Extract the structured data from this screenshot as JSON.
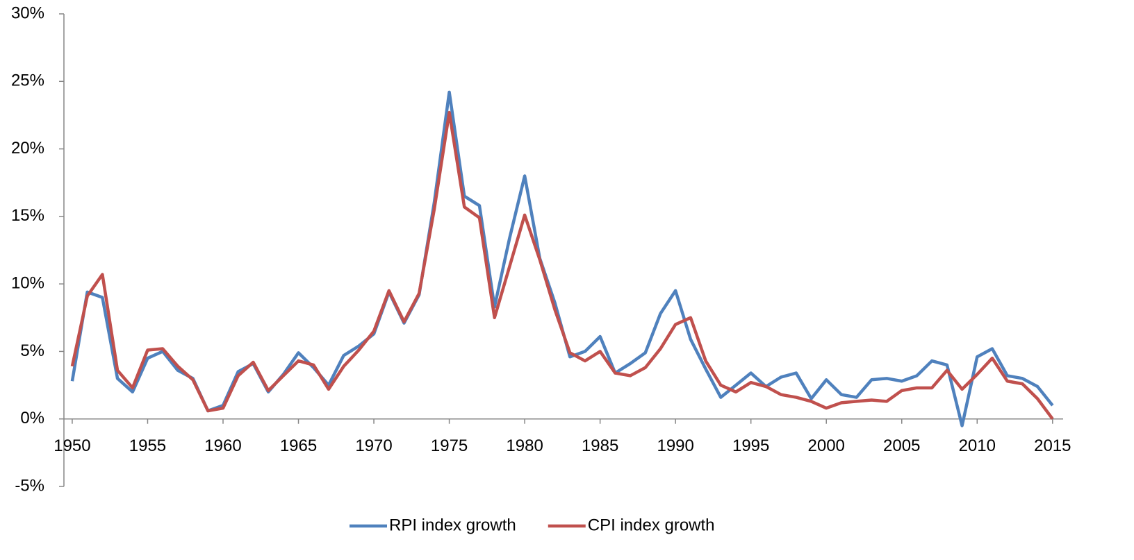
{
  "chart_data": {
    "type": "line",
    "x": [
      1950,
      1951,
      1952,
      1953,
      1954,
      1955,
      1956,
      1957,
      1958,
      1959,
      1960,
      1961,
      1962,
      1963,
      1964,
      1965,
      1966,
      1967,
      1968,
      1969,
      1970,
      1971,
      1972,
      1973,
      1974,
      1975,
      1976,
      1977,
      1978,
      1979,
      1980,
      1981,
      1982,
      1983,
      1984,
      1985,
      1986,
      1987,
      1988,
      1989,
      1990,
      1991,
      1992,
      1993,
      1994,
      1995,
      1996,
      1997,
      1998,
      1999,
      2000,
      2001,
      2002,
      2003,
      2004,
      2005,
      2006,
      2007,
      2008,
      2009,
      2010,
      2011,
      2012,
      2013,
      2014,
      2015
    ],
    "series": [
      {
        "name": "RPI index growth",
        "color": "#4f81bd",
        "values": [
          2.8,
          9.4,
          9.0,
          3.0,
          2.0,
          4.5,
          5.0,
          3.6,
          3.0,
          0.6,
          1.0,
          3.5,
          4.1,
          2.0,
          3.3,
          4.9,
          3.8,
          2.5,
          4.7,
          5.4,
          6.3,
          9.4,
          7.1,
          9.2,
          16.0,
          24.2,
          16.5,
          15.8,
          8.3,
          13.4,
          18.0,
          11.9,
          8.6,
          4.6,
          5.0,
          6.1,
          3.4,
          4.1,
          4.9,
          7.8,
          9.5,
          5.9,
          3.7,
          1.6,
          2.5,
          3.4,
          2.4,
          3.1,
          3.4,
          1.5,
          2.9,
          1.8,
          1.6,
          2.9,
          3.0,
          2.8,
          3.2,
          4.3,
          4.0,
          -0.5,
          4.6,
          5.2,
          3.2,
          3.0,
          2.4,
          1.0
        ]
      },
      {
        "name": "CPI index growth",
        "color": "#c0504d",
        "values": [
          3.9,
          9.1,
          10.7,
          3.6,
          2.3,
          5.1,
          5.2,
          3.9,
          2.9,
          0.6,
          0.8,
          3.2,
          4.2,
          2.1,
          3.2,
          4.3,
          4.0,
          2.2,
          3.9,
          5.1,
          6.5,
          9.5,
          7.2,
          9.3,
          15.5,
          22.7,
          15.7,
          14.9,
          7.5,
          11.3,
          15.1,
          11.8,
          8.1,
          4.9,
          4.3,
          5.0,
          3.4,
          3.2,
          3.8,
          5.2,
          7.0,
          7.5,
          4.3,
          2.5,
          2.0,
          2.7,
          2.4,
          1.8,
          1.6,
          1.3,
          0.8,
          1.2,
          1.3,
          1.4,
          1.3,
          2.1,
          2.3,
          2.3,
          3.6,
          2.2,
          3.3,
          4.5,
          2.8,
          2.6,
          1.5,
          0.0
        ]
      }
    ],
    "xlim": [
      1949.45,
      2015.7
    ],
    "xticks": [
      1950,
      1955,
      1960,
      1965,
      1970,
      1975,
      1980,
      1985,
      1990,
      1995,
      2000,
      2005,
      2010,
      2015
    ],
    "ylim": [
      -5,
      30
    ],
    "yticks": [
      {
        "value": -5,
        "label": "-5%"
      },
      {
        "value": 0,
        "label": "0%"
      },
      {
        "value": 5,
        "label": "5%"
      },
      {
        "value": 10,
        "label": "10%"
      },
      {
        "value": 15,
        "label": "15%"
      },
      {
        "value": 20,
        "label": "20%"
      },
      {
        "value": 25,
        "label": "25%"
      },
      {
        "value": 30,
        "label": "30%"
      }
    ],
    "legend": "bottom"
  }
}
